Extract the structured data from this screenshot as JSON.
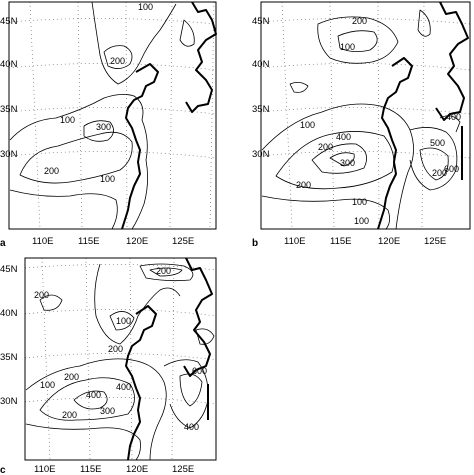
{
  "panels": [
    {
      "id": "a",
      "letter": "a",
      "lat_labels": [
        "45N",
        "40N",
        "35N",
        "30N"
      ],
      "lon_labels": [
        "110E",
        "115E",
        "120E",
        "125E"
      ],
      "contour_labels": [
        "100",
        "200",
        "100",
        "300",
        "200",
        "100"
      ]
    },
    {
      "id": "b",
      "letter": "b",
      "lat_labels": [
        "45N",
        "40N",
        "35N",
        "30N"
      ],
      "lon_labels": [
        "110E",
        "115E",
        "120E",
        "125E"
      ],
      "contour_labels": [
        "200",
        "100",
        "100",
        "200",
        "400",
        "300",
        "200",
        "100",
        "500",
        "200",
        "600",
        "400",
        "100"
      ]
    },
    {
      "id": "c",
      "letter": "c",
      "lat_labels": [
        "45N",
        "40N",
        "35N",
        "30N"
      ],
      "lon_labels": [
        "110E",
        "115E",
        "120E",
        "125E"
      ],
      "contour_labels": [
        "200",
        "200",
        "100",
        "200",
        "200",
        "400",
        "400",
        "300",
        "200",
        "100",
        "600",
        "400"
      ]
    }
  ]
}
